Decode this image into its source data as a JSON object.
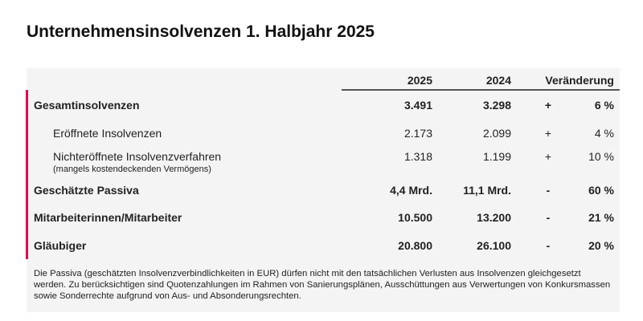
{
  "title": "Unternehmensinsolvenzen 1. Halbjahr 2025",
  "headers": {
    "y2025": "2025",
    "y2024": "2024",
    "change": "Veränderung"
  },
  "rows": [
    {
      "label": "Gesamtinsolvenzen",
      "v2025": "3.491",
      "v2024": "3.298",
      "sign": "+",
      "pct": "6 %"
    },
    {
      "label": "Eröffnete Insolvenzen",
      "v2025": "2.173",
      "v2024": "2.099",
      "sign": "+",
      "pct": "4 %"
    },
    {
      "label": "Nichteröffnete Insolvenzverfahren",
      "sublabel": "(mangels kostendeckenden Vermögens)",
      "v2025": "1.318",
      "v2024": "1.199",
      "sign": "+",
      "pct": "10 %"
    },
    {
      "label": "Geschätzte Passiva",
      "v2025": "4,4 Mrd.",
      "v2024": "11,1 Mrd.",
      "sign": "-",
      "pct": "60 %"
    },
    {
      "label": "Mitarbeiterinnen/Mitarbeiter",
      "v2025": "10.500",
      "v2024": "13.200",
      "sign": "-",
      "pct": "21 %"
    },
    {
      "label": "Gläubiger",
      "v2025": "20.800",
      "v2024": "26.100",
      "sign": "-",
      "pct": "20 %"
    }
  ],
  "footnote": "Die Passiva (geschätzten Insolvenzverbindlichkeiten in EUR) dürfen nicht mit den tatsächlichen Verlusten aus Insolvenzen gleichgesetzt werden. Zu berücksichtigen sind Quotenzahlungen im Rahmen von Sanierungsplänen, Ausschüttungen aus Verwertungen von Konkursmassen sowie Sonderrechte aufgrund von Aus- und Absonderungsrechten.",
  "colors": {
    "accent": "#e4004f",
    "panel": "#f4f4f4"
  }
}
